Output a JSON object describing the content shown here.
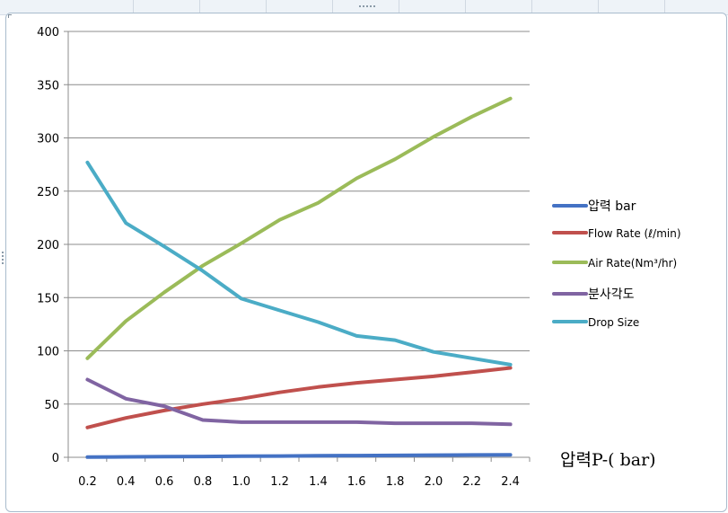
{
  "chart_data": {
    "type": "line",
    "title": "",
    "xlabel": "압력P-( bar)",
    "ylabel": "",
    "categories": [
      "0.2",
      "0.4",
      "0.6",
      "0.8",
      "1.0",
      "1.2",
      "1.4",
      "1.6",
      "1.8",
      "2.0",
      "2.2",
      "2.4"
    ],
    "yticks": [
      "0",
      "50",
      "100",
      "150",
      "200",
      "250",
      "300",
      "350",
      "400"
    ],
    "ylim": [
      0,
      400
    ],
    "grid": true,
    "legend_position": "right",
    "series": [
      {
        "name": "압력 bar",
        "color": "#4472c4",
        "values": [
          0.2,
          0.4,
          0.6,
          0.8,
          1.0,
          1.2,
          1.4,
          1.6,
          1.8,
          2.0,
          2.2,
          2.4
        ]
      },
      {
        "name": "Flow Rate (ℓ/min)",
        "color": "#c0504d",
        "values": [
          28,
          37,
          44,
          50,
          55,
          61,
          66,
          70,
          73,
          76,
          80,
          84
        ]
      },
      {
        "name": "Air Rate(Nm³/hr)",
        "color": "#9bbb59",
        "values": [
          93,
          128,
          155,
          180,
          201,
          223,
          239,
          262,
          280,
          301,
          320,
          337
        ]
      },
      {
        "name": "분사각도",
        "color": "#8064a2",
        "values": [
          73,
          55,
          48,
          35,
          33,
          33,
          33,
          33,
          32,
          32,
          32,
          31
        ]
      },
      {
        "name": "Drop Size",
        "color": "#4bacc6",
        "values": [
          277,
          220,
          198,
          175,
          149,
          138,
          127,
          114,
          110,
          99,
          93,
          87
        ]
      }
    ]
  }
}
